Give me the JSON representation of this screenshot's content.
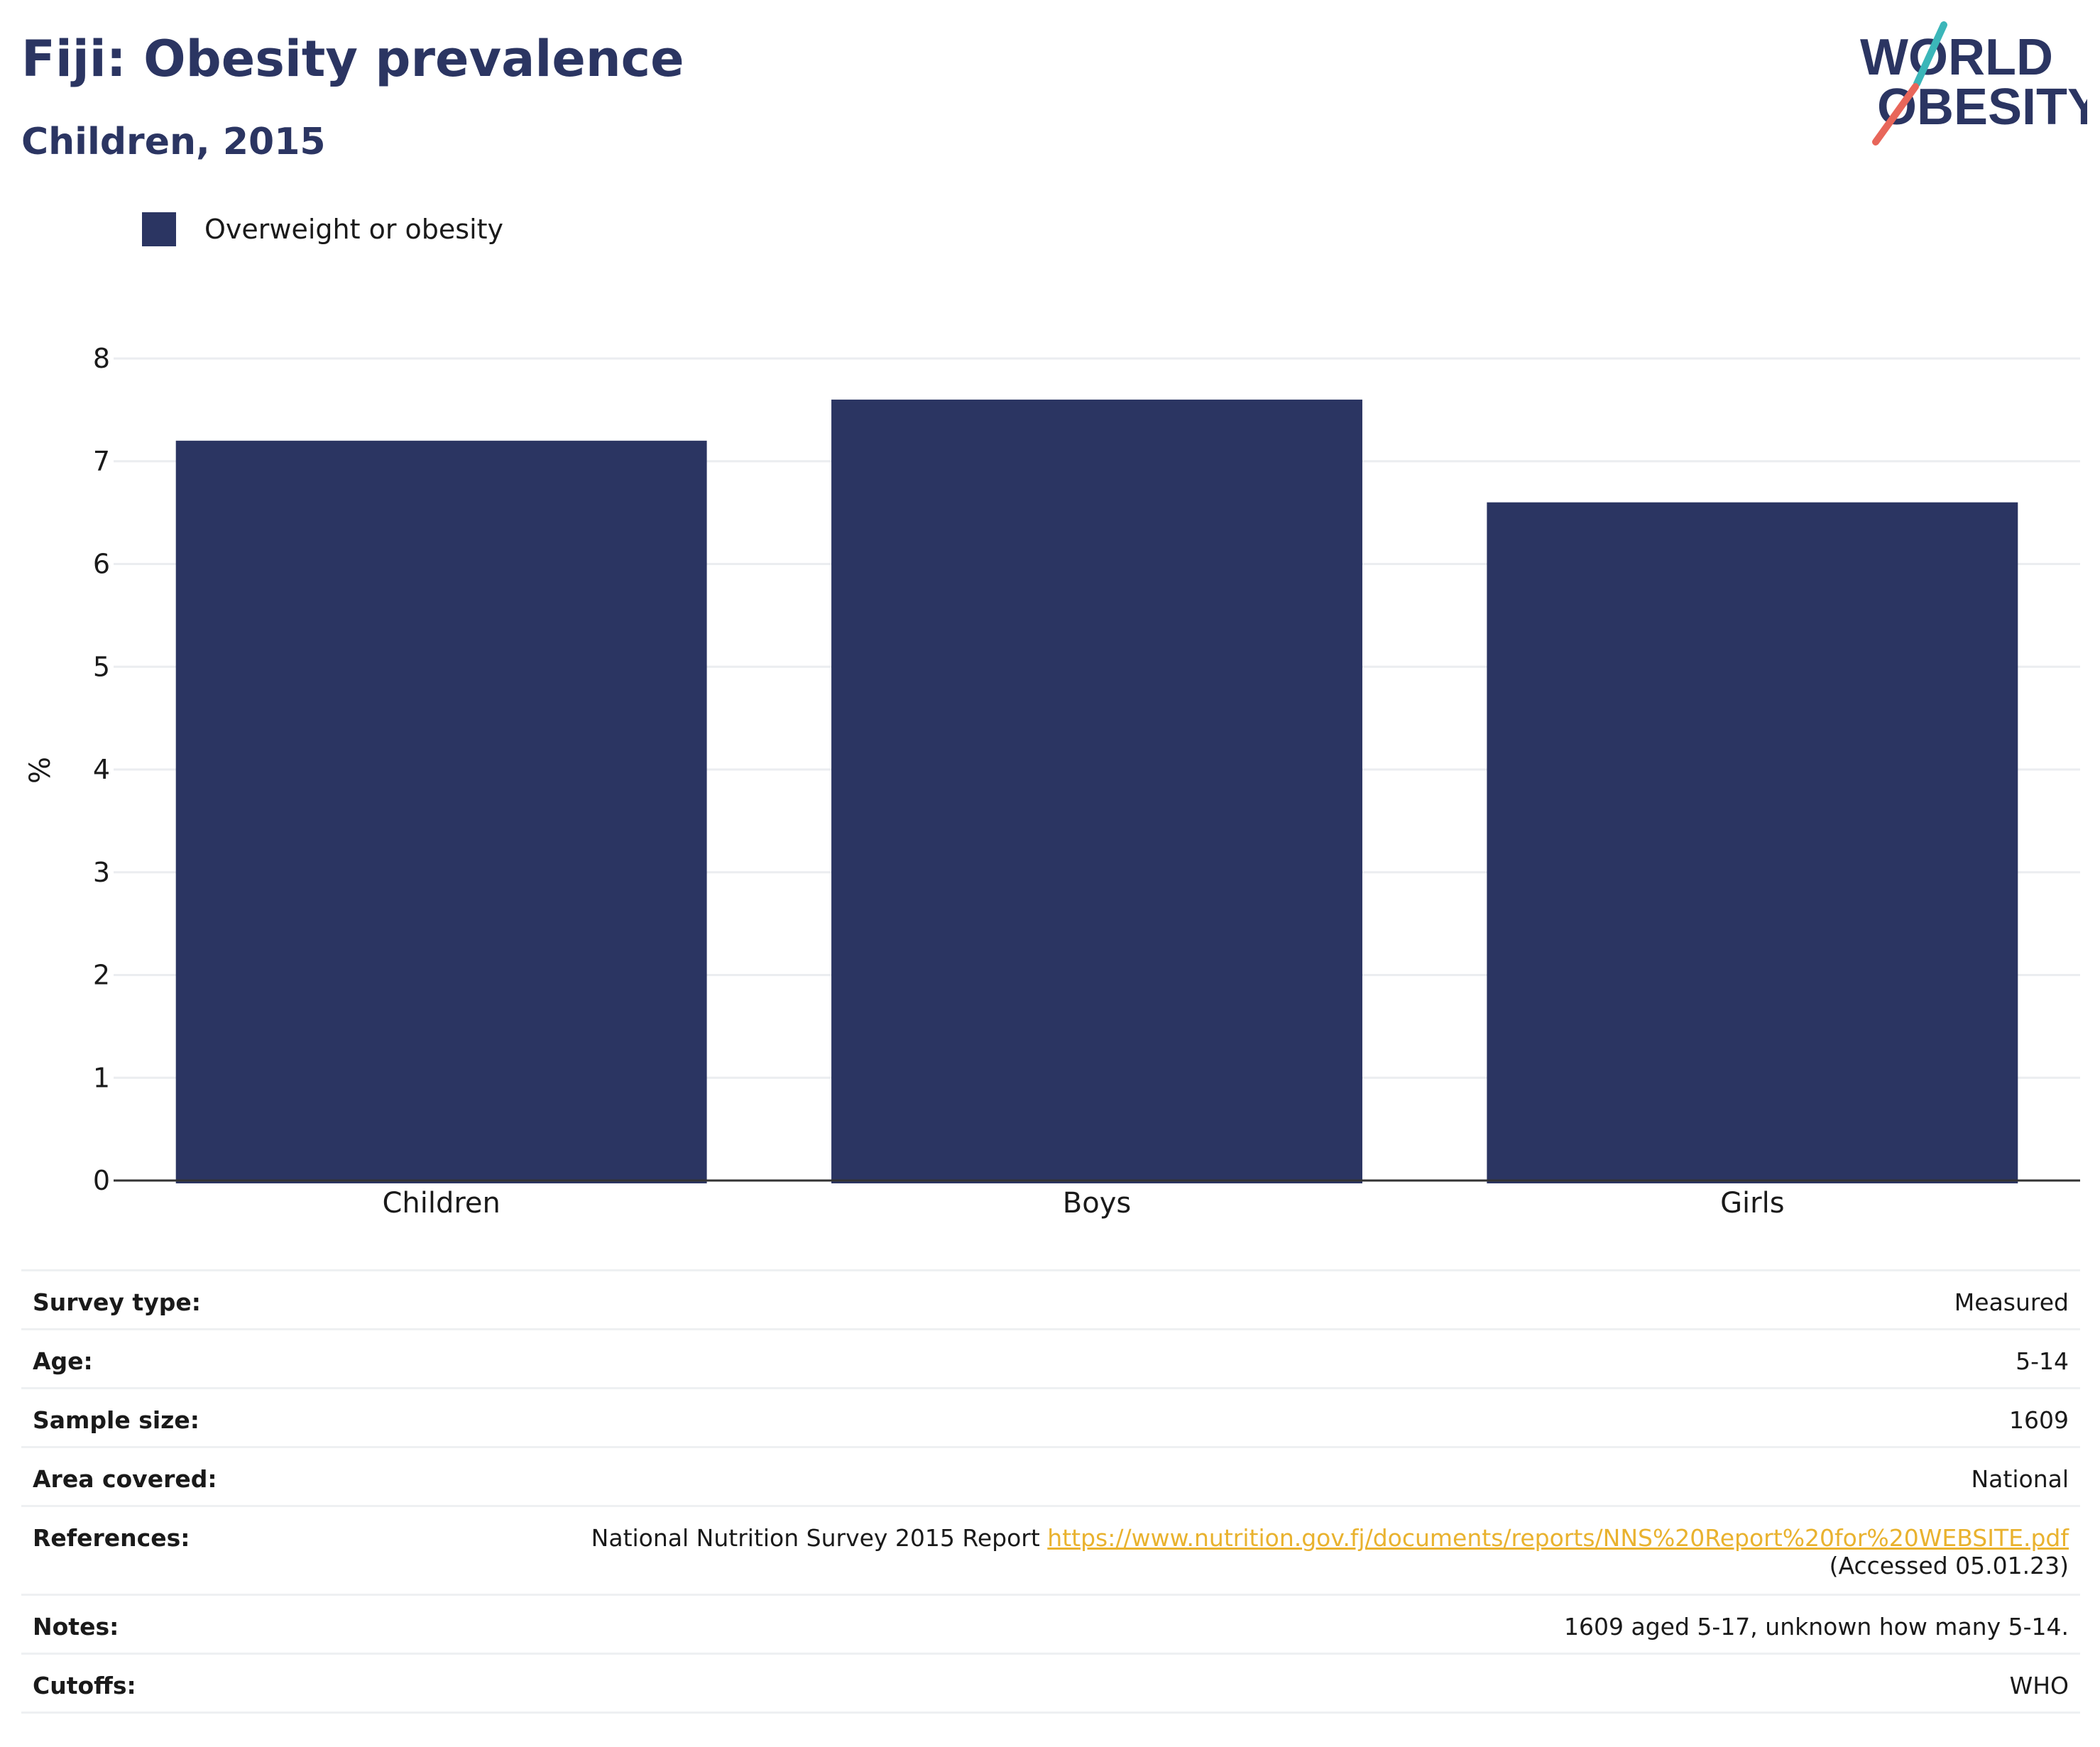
{
  "header": {
    "title": "Fiji: Obesity prevalence",
    "subtitle": "Children, 2015"
  },
  "logo": {
    "line1": "WORLD",
    "line2": "OBESITY",
    "colors": {
      "text": "#2b3562",
      "slash_top": "#3bb6b9",
      "slash_bottom": "#e8665a"
    }
  },
  "legend": {
    "label": "Overweight or obesity",
    "color": "#2b3562"
  },
  "chart_data": {
    "type": "bar",
    "categories": [
      "Children",
      "Boys",
      "Girls"
    ],
    "series": [
      {
        "name": "Overweight or obesity",
        "values": [
          7.2,
          7.6,
          6.6
        ],
        "color": "#2b3562"
      }
    ],
    "ylabel": "%",
    "xlabel": "",
    "ylim": [
      0,
      8
    ],
    "yticks": [
      0,
      1,
      2,
      3,
      4,
      5,
      6,
      7,
      8
    ],
    "grid": true
  },
  "metadata": {
    "rows": [
      {
        "key": "Survey type:",
        "value": "Measured"
      },
      {
        "key": "Age:",
        "value": "5-14"
      },
      {
        "key": "Sample size:",
        "value": "1609"
      },
      {
        "key": "Area covered:",
        "value": "National"
      },
      {
        "key": "References:",
        "value": "National Nutrition Survey 2015 Report ",
        "link": "https://www.nutrition.gov.fj/documents/reports/NNS%20Report%20for%20WEBSITE.pdf",
        "extra": "(Accessed 05.01.23)"
      },
      {
        "key": "Notes:",
        "value": "1609 aged 5-17, unknown how many 5-14."
      },
      {
        "key": "Cutoffs:",
        "value": "WHO"
      }
    ],
    "link_color": "#e9b22e"
  }
}
